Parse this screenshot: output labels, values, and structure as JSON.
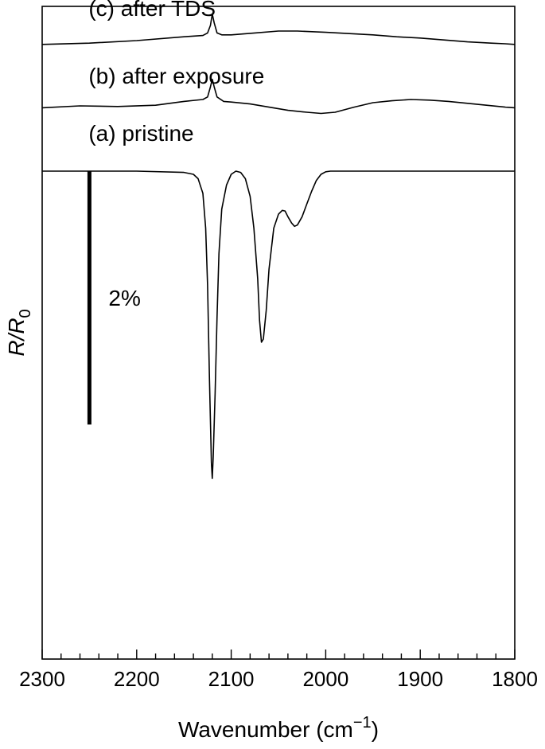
{
  "chart_data": {
    "type": "line",
    "xlabel": "Wavenumber (cm",
    "xlabel_sup": "−1",
    "xlabel_close": ")",
    "ylabel_main": "R/R",
    "ylabel_sub": "0",
    "xlim": [
      2300,
      1800
    ],
    "x_reversed": true,
    "ylim": [
      -7.7,
      2.6
    ],
    "y_units": "% (relative R/R0, offset)",
    "y_ticks_shown": false,
    "grid": false,
    "legend": "none",
    "x_ticks": [
      {
        "value": 2300,
        "label": "2300"
      },
      {
        "value": 2200,
        "label": "2200"
      },
      {
        "value": 2100,
        "label": "2100"
      },
      {
        "value": 2000,
        "label": "2000"
      },
      {
        "value": 1900,
        "label": "1900"
      },
      {
        "value": 1800,
        "label": "1800"
      }
    ],
    "x_minor_step": 20,
    "scale_bar": {
      "label": "2%",
      "x": 2250,
      "y_top": 0.0,
      "y_bottom": -4.0
    },
    "series": [
      {
        "name": "(c) after TDS",
        "offset": 2.0,
        "label_x": 2245,
        "label_y": 2.45,
        "x": [
          2300,
          2250,
          2200,
          2150,
          2130,
          2125,
          2122,
          2120,
          2118,
          2115,
          2110,
          2100,
          2075,
          2050,
          2030,
          2000,
          1975,
          1950,
          1925,
          1900,
          1875,
          1850,
          1825,
          1810,
          1800
        ],
        "y": [
          0.0,
          0.02,
          0.06,
          0.12,
          0.14,
          0.18,
          0.3,
          0.48,
          0.34,
          0.18,
          0.15,
          0.15,
          0.18,
          0.21,
          0.21,
          0.19,
          0.17,
          0.15,
          0.12,
          0.1,
          0.07,
          0.04,
          0.02,
          0.01,
          0.0
        ]
      },
      {
        "name": "(b) after exposure",
        "offset": 1.0,
        "label_x": 2245,
        "label_y": 1.38,
        "x": [
          2300,
          2260,
          2220,
          2180,
          2150,
          2130,
          2125,
          2122,
          2120,
          2118,
          2115,
          2108,
          2100,
          2080,
          2060,
          2040,
          2020,
          2005,
          1990,
          1970,
          1950,
          1930,
          1910,
          1890,
          1870,
          1850,
          1830,
          1810,
          1800
        ],
        "y": [
          0.0,
          0.03,
          0.02,
          0.04,
          0.1,
          0.13,
          0.17,
          0.33,
          0.45,
          0.33,
          0.17,
          0.1,
          0.09,
          0.06,
          0.01,
          -0.04,
          -0.07,
          -0.09,
          -0.07,
          0.01,
          0.08,
          0.11,
          0.13,
          0.12,
          0.1,
          0.07,
          0.04,
          0.01,
          0.0
        ]
      },
      {
        "name": "(a) pristine",
        "offset": 0.0,
        "label_x": 2245,
        "label_y": 0.48,
        "x": [
          2300,
          2200,
          2150,
          2140,
          2135,
          2130,
          2127,
          2125,
          2123,
          2121,
          2120,
          2119,
          2117,
          2115,
          2113,
          2110,
          2105,
          2100,
          2095,
          2090,
          2085,
          2080,
          2076,
          2072,
          2070,
          2068,
          2066,
          2063,
          2060,
          2055,
          2050,
          2046,
          2043,
          2040,
          2036,
          2033,
          2030,
          2025,
          2020,
          2015,
          2010,
          2005,
          2000,
          1995,
          1990,
          1950,
          1900,
          1850,
          1800
        ],
        "y": [
          0.0,
          0.0,
          -0.02,
          -0.05,
          -0.12,
          -0.35,
          -0.9,
          -1.8,
          -3.3,
          -4.6,
          -4.85,
          -4.5,
          -3.5,
          -2.3,
          -1.3,
          -0.6,
          -0.22,
          -0.05,
          0.0,
          -0.02,
          -0.12,
          -0.4,
          -0.9,
          -1.7,
          -2.35,
          -2.7,
          -2.65,
          -2.2,
          -1.55,
          -0.9,
          -0.68,
          -0.62,
          -0.63,
          -0.72,
          -0.82,
          -0.87,
          -0.85,
          -0.72,
          -0.52,
          -0.32,
          -0.15,
          -0.05,
          -0.01,
          0.0,
          0.0,
          0.0,
          0.0,
          0.0,
          0.0
        ]
      }
    ]
  }
}
